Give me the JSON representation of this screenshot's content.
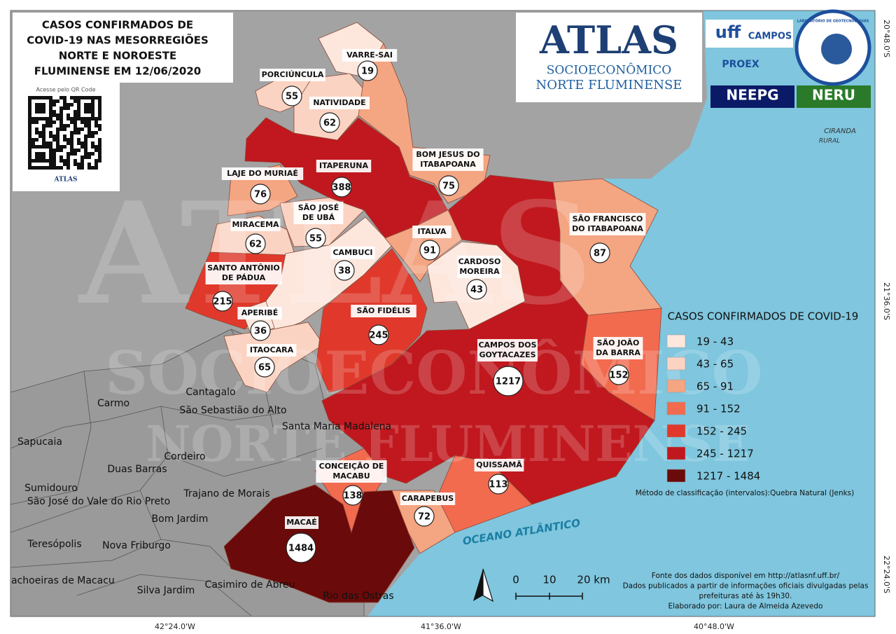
{
  "title": [
    "CASOS CONFIRMADOS DE",
    "COVID-19 NAS MESORREGIÕES",
    "NORTE E NOROESTE",
    "FLUMINENSE EM 12/06/2020"
  ],
  "qr": {
    "caption": "Acesse pelo QR Code",
    "brand": "ATLAS"
  },
  "atlas_logo": {
    "title": "ATLAS",
    "line1": "SOCIOECONÔMICO",
    "line2": "NORTE FLUMINENSE"
  },
  "partner_logos": [
    "uff",
    "CAMPOS",
    "PROEX",
    "NEEPG",
    "NERU",
    "CIRANDA",
    "RURAL",
    "LABORATÓRIO DE GEOTECNOLOGIAS"
  ],
  "watermark": [
    "ATLAS",
    "SOCIOECONÔMICO",
    "NORTE FLUMINENSE"
  ],
  "municipalities": [
    {
      "name": [
        "PORCIÚNCULA"
      ],
      "cases": 55,
      "color": "#fbd3c2"
    },
    {
      "name": [
        "VARRE-SAI"
      ],
      "cases": 19,
      "color": "#fde7dd"
    },
    {
      "name": [
        "NATIVIDADE"
      ],
      "cases": 62,
      "color": "#fbd3c2"
    },
    {
      "name": [
        "BOM JESUS DO",
        "ITABAPOANA"
      ],
      "cases": 75,
      "color": "#f4a582"
    },
    {
      "name": [
        "ITAPERUNA"
      ],
      "cases": 388,
      "color": "#c0181e"
    },
    {
      "name": [
        "LAJE DO MURIAÉ"
      ],
      "cases": 76,
      "color": "#f4a582"
    },
    {
      "name": [
        "SÃO JOSÉ",
        "DE UBÁ"
      ],
      "cases": 55,
      "color": "#fbd3c2"
    },
    {
      "name": [
        "MIRACEMA"
      ],
      "cases": 62,
      "color": "#fbd3c2"
    },
    {
      "name": [
        "SANTO ANTÔNIO",
        "DE PÁDUA"
      ],
      "cases": 215,
      "color": "#e0392b"
    },
    {
      "name": [
        "CAMBUCI"
      ],
      "cases": 38,
      "color": "#fde7dd"
    },
    {
      "name": [
        "APERIBÉ"
      ],
      "cases": 36,
      "color": "#fde7dd"
    },
    {
      "name": [
        "ITAOCARA"
      ],
      "cases": 65,
      "color": "#fbd3c2"
    },
    {
      "name": [
        "SÃO FIDÉLIS"
      ],
      "cases": 245,
      "color": "#e0392b"
    },
    {
      "name": [
        "ITALVA"
      ],
      "cases": 91,
      "color": "#f4a582"
    },
    {
      "name": [
        "CARDOSO",
        "MOREIRA"
      ],
      "cases": 43,
      "color": "#fde7dd"
    },
    {
      "name": [
        "CAMPOS DOS",
        "GOYTACAZES"
      ],
      "cases": 1217,
      "color": "#c0181e"
    },
    {
      "name": [
        "SÃO FRANCISCO",
        "DO ITABAPOANA"
      ],
      "cases": 87,
      "color": "#f4a582"
    },
    {
      "name": [
        "SÃO JOÃO",
        "DA BARRA"
      ],
      "cases": 152,
      "color": "#f26b4f"
    },
    {
      "name": [
        "QUISSAMÃ"
      ],
      "cases": 113,
      "color": "#f26b4f"
    },
    {
      "name": [
        "CARAPEBUS"
      ],
      "cases": 72,
      "color": "#f4a582"
    },
    {
      "name": [
        "CONCEIÇÃO DE",
        "MACABU"
      ],
      "cases": 138,
      "color": "#f26b4f"
    },
    {
      "name": [
        "MACAÉ"
      ],
      "cases": 1484,
      "color": "#6b0a0a"
    }
  ],
  "neighbors": [
    "Cantagalo",
    "São Sebastião do Alto",
    "Carmo",
    "Santa Maria Madalena",
    "Sapucaia",
    "Cordeiro",
    "Duas Barras",
    "Sumidouro",
    "São José do Vale do Rio Preto",
    "Trajano de Morais",
    "Bom Jardim",
    "Teresópolis",
    "Nova Friburgo",
    "Cachoeiras de Macacu",
    "Silva Jardim",
    "Casimiro de Abreu",
    "Rio das Ostras"
  ],
  "ocean_label": "OCEANO ATLÂNTICO",
  "legend": {
    "title": "CASOS CONFIRMADOS DE COVID-19",
    "classes": [
      {
        "label": "19 - 43",
        "color": "#fde7dd"
      },
      {
        "label": "43 - 65",
        "color": "#fbd3c2"
      },
      {
        "label": "65 - 91",
        "color": "#f4a582"
      },
      {
        "label": "91 - 152",
        "color": "#f26b4f"
      },
      {
        "label": "152 - 245",
        "color": "#e0392b"
      },
      {
        "label": "245 - 1217",
        "color": "#c0181e"
      },
      {
        "label": "1217 - 1484",
        "color": "#6b0a0a"
      }
    ],
    "method": "Método de classificação (intervalos):Quebra Natural (Jenks)"
  },
  "scale": [
    "0",
    "10",
    "20 km"
  ],
  "source": [
    "Fonte dos dados disponível em http://atlasnf.uff.br/",
    "Dados publicados a partir de informações oficiais divulgadas pelas",
    "prefeituras até às 19h30.",
    "Elaborado por: Laura de Almeida Azevedo"
  ],
  "coords_x": [
    "42°24.0'W",
    "41°36.0'W",
    "40°48.0'W"
  ],
  "coords_y": [
    "20°48.0'S",
    "21°36.0'S",
    "22°24.0'S"
  ]
}
